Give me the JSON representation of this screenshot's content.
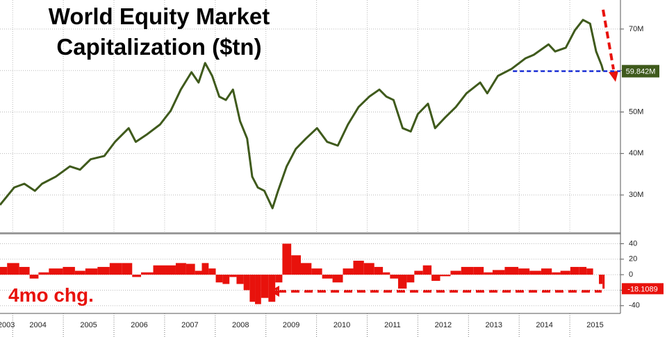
{
  "chart_data": [
    {
      "type": "line",
      "title": "World Equity Market Capitalization ($tn)",
      "x": [
        2003.75,
        2004.03,
        2004.23,
        2004.44,
        2004.58,
        2004.85,
        2005.13,
        2005.33,
        2005.54,
        2005.81,
        2006.02,
        2006.29,
        2006.43,
        2006.64,
        2006.91,
        2007.12,
        2007.32,
        2007.53,
        2007.67,
        2007.8,
        2007.94,
        2008.08,
        2008.21,
        2008.35,
        2008.49,
        2008.63,
        2008.73,
        2008.84,
        2008.97,
        2009.13,
        2009.24,
        2009.41,
        2009.59,
        2009.79,
        2010.01,
        2010.21,
        2010.42,
        2010.62,
        2010.83,
        2011.04,
        2011.24,
        2011.38,
        2011.52,
        2011.7,
        2011.86,
        2012,
        2012.2,
        2012.34,
        2012.54,
        2012.75,
        2012.96,
        2013.23,
        2013.37,
        2013.58,
        2013.85,
        2014.12,
        2014.29,
        2014.58,
        2014.71,
        2014.92,
        2015.1,
        2015.26,
        2015.4,
        2015.52,
        2015.63,
        2015.66
      ],
      "values": [
        27.6,
        31.8,
        32.7,
        31,
        32.7,
        34.4,
        36.9,
        36.1,
        38.6,
        39.4,
        42.8,
        46.1,
        42.8,
        44.5,
        47,
        50.3,
        55.4,
        59.6,
        57.1,
        61.8,
        58.7,
        53.7,
        52.9,
        55.4,
        47.8,
        43.6,
        34.4,
        31.8,
        31,
        26.8,
        31,
        36.9,
        41.1,
        43.6,
        46.1,
        42.8,
        41.9,
        47,
        51.2,
        53.7,
        55.4,
        53.7,
        52.9,
        46.1,
        45.3,
        49.5,
        52,
        46.1,
        48.7,
        51.2,
        54.5,
        57.1,
        54.5,
        58.7,
        60.4,
        62.9,
        63.8,
        66.3,
        64.6,
        65.5,
        69.7,
        72.2,
        71.3,
        64.6,
        61.2,
        59.842
      ],
      "value_labels": [
        null,
        null,
        null,
        null,
        null,
        null,
        null,
        null,
        null,
        null,
        null,
        null,
        null,
        null,
        null,
        null,
        null,
        null,
        null,
        null,
        null,
        null,
        null,
        null,
        null,
        null,
        null,
        null,
        null,
        null,
        null,
        null,
        null,
        null,
        null,
        null,
        null,
        null,
        null,
        null,
        null,
        null,
        null,
        null,
        null,
        null,
        null,
        null,
        null,
        null,
        null,
        null,
        null,
        null,
        null,
        null,
        null,
        null,
        null,
        null,
        null,
        null,
        null,
        null,
        null,
        "59.842M"
      ],
      "color": "#3f5a1c",
      "xlim": [
        2003.75,
        2016
      ],
      "xticks": [
        2004,
        2005,
        2006,
        2007,
        2008,
        2009,
        2010,
        2011,
        2012,
        2013,
        2014,
        2015
      ],
      "ylim": [
        21,
        77
      ],
      "yticks": [
        {
          "value": 30,
          "label": "30M"
        },
        {
          "value": 40,
          "label": "40M"
        },
        {
          "value": 50,
          "label": "50M"
        },
        {
          "value": 60,
          "label": "60M"
        },
        {
          "value": 70,
          "label": "70M"
        }
      ],
      "grid": true
    },
    {
      "type": "bar",
      "title": "4mo chg.",
      "x": [
        2003.75,
        2004.03,
        2004.23,
        2004.44,
        2004.58,
        2004.85,
        2005.13,
        2005.33,
        2005.54,
        2005.81,
        2006.02,
        2006.29,
        2006.43,
        2006.64,
        2006.91,
        2007.12,
        2007.32,
        2007.53,
        2007.67,
        2007.8,
        2007.94,
        2008.08,
        2008.21,
        2008.35,
        2008.49,
        2008.63,
        2008.73,
        2008.84,
        2008.97,
        2009.13,
        2009.24,
        2009.41,
        2009.59,
        2009.79,
        2010.01,
        2010.21,
        2010.42,
        2010.62,
        2010.83,
        2011.04,
        2011.24,
        2011.38,
        2011.52,
        2011.7,
        2011.86,
        2012,
        2012.2,
        2012.34,
        2012.54,
        2012.75,
        2012.96,
        2013.23,
        2013.37,
        2013.58,
        2013.85,
        2014.12,
        2014.29,
        2014.58,
        2014.71,
        2014.92,
        2015.1,
        2015.26,
        2015.4,
        2015.52,
        2015.63,
        2015.66
      ],
      "values": [
        10,
        15,
        10,
        -5,
        3,
        8,
        10,
        5,
        8,
        10,
        15,
        15,
        -3,
        3,
        12,
        12,
        15,
        14,
        5,
        15,
        8,
        -10,
        -12,
        -3,
        -12,
        -20,
        -35,
        -38,
        -30,
        -35,
        -10,
        40,
        25,
        15,
        8,
        -5,
        -10,
        8,
        18,
        15,
        10,
        3,
        -5,
        -18,
        -10,
        5,
        12,
        -8,
        -2,
        5,
        10,
        10,
        3,
        6,
        10,
        8,
        5,
        8,
        3,
        5,
        10,
        10,
        8,
        0,
        -12,
        -18.1089
      ],
      "color": "#e8120c",
      "xlim": [
        2003.75,
        2016
      ],
      "xticks": [
        2003,
        2004,
        2005,
        2006,
        2007,
        2008,
        2009,
        2010,
        2011,
        2012,
        2013,
        2014,
        2015
      ],
      "ylim": [
        -50,
        52
      ],
      "yticks": [
        -40,
        -20,
        0,
        20,
        40
      ],
      "grid": true
    }
  ]
}
